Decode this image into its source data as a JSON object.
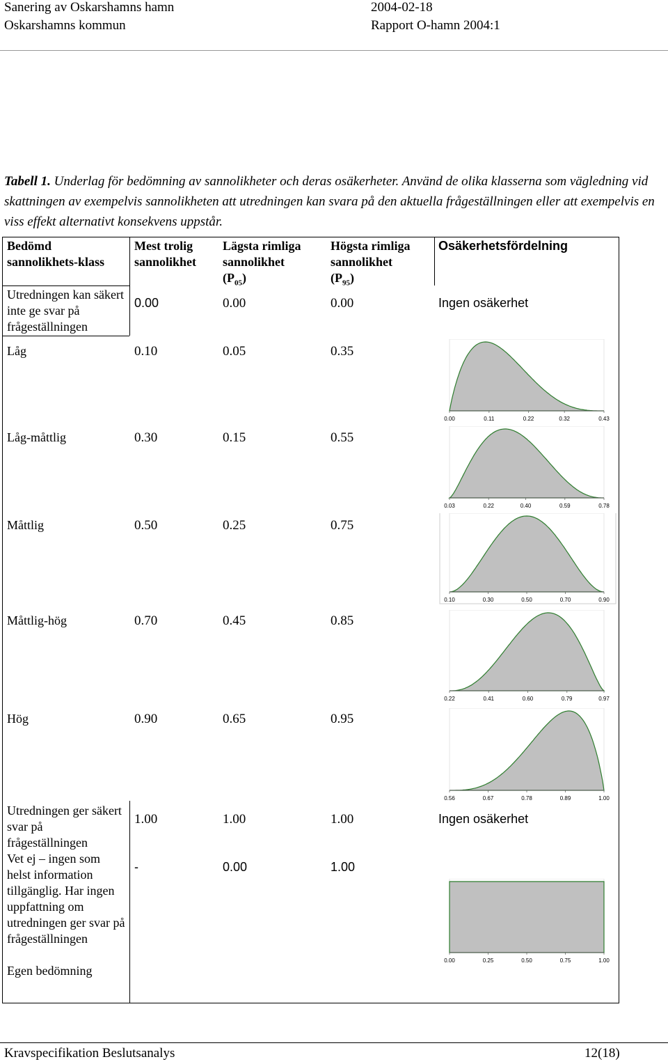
{
  "header": {
    "title": "Sanering av Oskarshamns hamn",
    "date": "2004-02-18",
    "org": "Oskarshamns kommun",
    "report": "Rapport O-hamn 2004:1"
  },
  "caption": {
    "label": "Tabell 1.",
    "text": "Underlag för bedömning av sannolikheter och deras osäkerheter. Använd de olika klasserna som vägledning vid skattningen av exempelvis sannolikheten att utredningen kan svara på den aktuella frågeställningen eller att exempelvis en viss effekt alternativt konsekvens uppstår."
  },
  "table": {
    "columns": [
      {
        "label": "Bedömd sannolikhets-klass"
      },
      {
        "label": "Mest trolig sannolikhet"
      },
      {
        "label": "Lägsta rimliga sannolikhet",
        "prefix": "(P",
        "sub": "05",
        "suffix": ")"
      },
      {
        "label": "Högsta rimliga sannolikhet",
        "prefix": "(P",
        "sub": "95",
        "suffix": ")"
      },
      {
        "label": "Osäkerhetsfördelning"
      }
    ],
    "rows": [
      {
        "class": "Utredningen kan säkert inte ge svar på frågeställningen",
        "most_likely": "0.00",
        "lowest": "0.00",
        "highest": "0.00",
        "distribution": "Ingen osäkerhet"
      },
      {
        "class": "Låg",
        "most_likely": "0.10",
        "lowest": "0.05",
        "highest": "0.35",
        "ticks": [
          "0.00",
          "0.11",
          "0.22",
          "0.32",
          "0.43"
        ]
      },
      {
        "class": "Låg-måttlig",
        "most_likely": "0.30",
        "lowest": "0.15",
        "highest": "0.55",
        "ticks": [
          "0.03",
          "0.22",
          "0.40",
          "0.59",
          "0.78"
        ]
      },
      {
        "class": "Måttlig",
        "most_likely": "0.50",
        "lowest": "0.25",
        "highest": "0.75",
        "ticks": [
          "0.10",
          "0.30",
          "0.50",
          "0.70",
          "0.90"
        ]
      },
      {
        "class": "Måttlig-hög",
        "most_likely": "0.70",
        "lowest": "0.45",
        "highest": "0.85",
        "ticks": [
          "0.22",
          "0.41",
          "0.60",
          "0.79",
          "0.97"
        ]
      },
      {
        "class": "Hög",
        "most_likely": "0.90",
        "lowest": "0.65",
        "highest": "0.95",
        "ticks": [
          "0.56",
          "0.67",
          "0.78",
          "0.89",
          "1.00"
        ]
      },
      {
        "class": "Utredningen ger säkert svar på frågeställningen",
        "most_likely": "1.00",
        "lowest": "1.00",
        "highest": "1.00",
        "distribution": "Ingen osäkerhet"
      },
      {
        "class": "Vet ej – ingen som helst information tillgänglig. Har ingen uppfattning om utredningen ger svar på frågeställningen",
        "most_likely": "-",
        "lowest": "0.00",
        "highest": "1.00",
        "ticks": [
          "0.00",
          "0.25",
          "0.50",
          "0.75",
          "1.00"
        ]
      },
      {
        "class": "Egen bedömning"
      }
    ]
  },
  "footer": {
    "left": "Kravspecifikation Beslutsanalys",
    "right": "12(18)"
  }
}
